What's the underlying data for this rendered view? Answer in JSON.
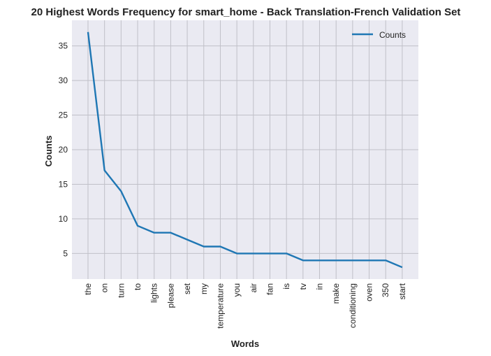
{
  "chart_data": {
    "type": "line",
    "title": "20 Highest Words Frequency for smart_home - Back Translation-French Validation Set",
    "xlabel": "Words",
    "ylabel": "Counts",
    "categories": [
      "the",
      "on",
      "turn",
      "to",
      "lights",
      "please",
      "set",
      "my",
      "temperature",
      "you",
      "air",
      "fan",
      "is",
      "tv",
      "in",
      "make",
      "conditioning",
      "oven",
      "350",
      "start"
    ],
    "series": [
      {
        "name": "Counts",
        "values": [
          37,
          17,
          14,
          9,
          8,
          8,
          7,
          6,
          6,
          5,
          5,
          5,
          5,
          4,
          4,
          4,
          4,
          4,
          4,
          3
        ]
      }
    ],
    "ylim": [
      1.3,
      38.7
    ],
    "yticks": [
      5,
      10,
      15,
      20,
      25,
      30,
      35
    ],
    "grid": true,
    "legend_position": "top-right",
    "colors": {
      "line": "#1f77b4",
      "background": "#eaeaf2",
      "grid": "#c0c0c8"
    }
  }
}
